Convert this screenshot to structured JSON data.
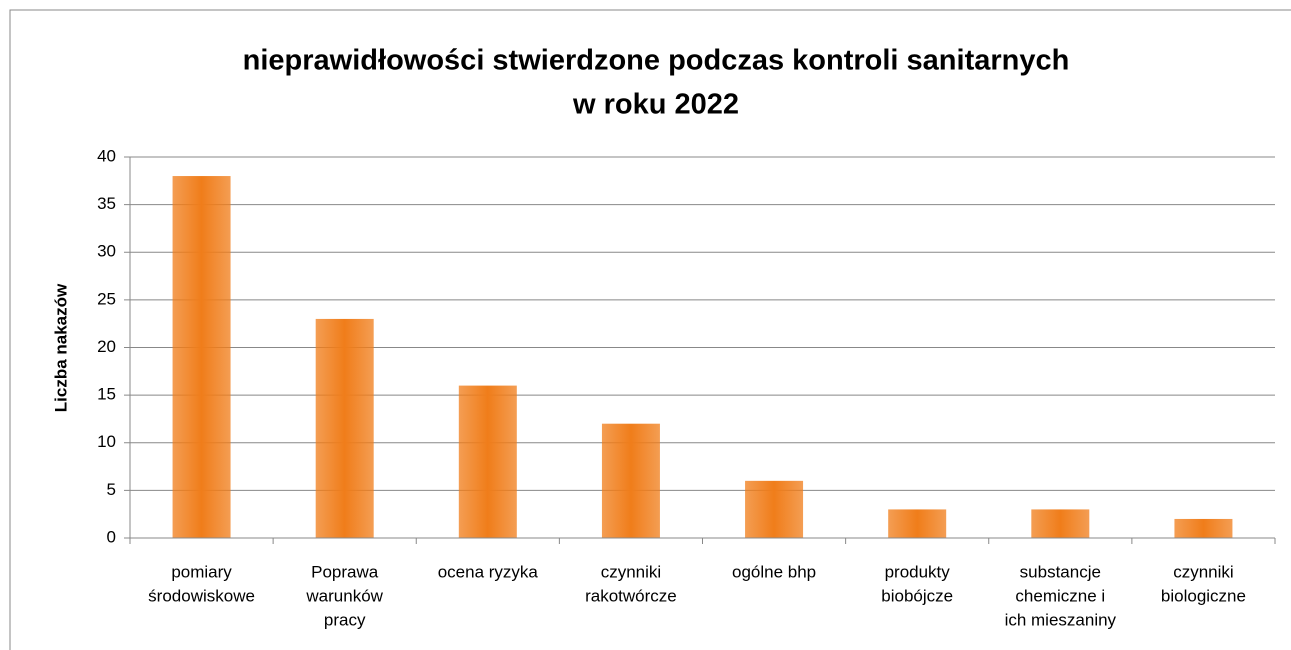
{
  "chart_data": {
    "type": "bar",
    "title": [
      "nieprawidłowości stwierdzone podczas kontroli sanitarnych",
      "w roku 2022"
    ],
    "y_label": "Liczba nakazów",
    "categories": [
      [
        "pomiary",
        "środowiskowe"
      ],
      [
        "Poprawa",
        "warunków",
        "pracy"
      ],
      [
        "ocena  ryzyka"
      ],
      [
        "czynniki",
        "rakotwórcze"
      ],
      [
        "ogólne bhp"
      ],
      [
        "produkty",
        "biobójcze"
      ],
      [
        "substancje",
        "chemiczne i",
        "ich mieszaniny"
      ],
      [
        "czynniki",
        "biologiczne"
      ]
    ],
    "values": [
      38,
      23,
      16,
      12,
      6,
      3,
      3,
      2
    ],
    "color": "#f07d1a",
    "ylim": [
      0,
      40
    ],
    "yticks": [
      0,
      5,
      10,
      15,
      20,
      25,
      30,
      35,
      40
    ],
    "grid": true
  }
}
